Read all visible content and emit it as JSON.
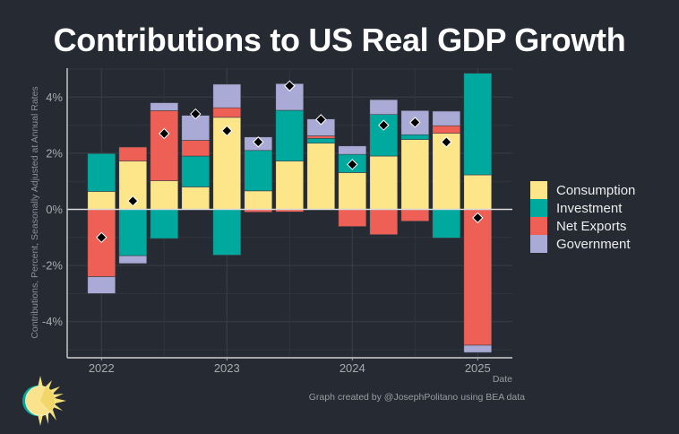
{
  "title": "Contributions to US Real GDP Growth",
  "caption": "Graph created by @JosephPolitano using BEA data",
  "chart_data": {
    "type": "bar",
    "stacked": true,
    "title": "Contributions to US Real GDP Growth",
    "xlabel": "Date",
    "ylabel": "Contributions, Percent, Seasonally Adjusted at Annual Rates",
    "categories": [
      "2022Q1",
      "2022Q2",
      "2022Q3",
      "2022Q4",
      "2023Q1",
      "2023Q2",
      "2023Q3",
      "2023Q4",
      "2024Q1",
      "2024Q2",
      "2024Q3",
      "2024Q4",
      "2025Q1"
    ],
    "x_tick_labels": [
      "2022",
      "2023",
      "2024",
      "2025"
    ],
    "x_tick_categories": [
      "2022Q1",
      "2023Q1",
      "2024Q1",
      "2025Q1"
    ],
    "y_ticks": [
      -4,
      -2,
      0,
      2,
      4
    ],
    "y_tick_labels": [
      "-4%",
      "-2%",
      "0%",
      "2%",
      "4%"
    ],
    "ylim": [
      -5.3,
      5.0
    ],
    "grid": true,
    "legend_position": "right",
    "series": [
      {
        "name": "Consumption",
        "color": "#fde68a",
        "values": [
          0.64,
          1.72,
          1.02,
          0.8,
          3.28,
          0.66,
          1.72,
          2.36,
          1.31,
          1.9,
          2.49,
          2.71,
          1.23
        ]
      },
      {
        "name": "Investment",
        "color": "#00a99d",
        "values": [
          1.35,
          -1.65,
          -1.04,
          1.1,
          -1.63,
          1.44,
          1.81,
          0.17,
          0.65,
          1.48,
          0.17,
          -1.02,
          3.62
        ]
      },
      {
        "name": "Net Exports",
        "color": "#ee6055",
        "values": [
          -2.4,
          0.5,
          2.5,
          0.56,
          0.34,
          -0.1,
          -0.09,
          0.09,
          -0.61,
          -0.9,
          -0.42,
          0.27,
          -4.84
        ]
      },
      {
        "name": "Government",
        "color": "#aaaad6",
        "values": [
          -0.6,
          -0.28,
          0.28,
          0.89,
          0.84,
          0.48,
          0.95,
          0.6,
          0.3,
          0.53,
          0.86,
          0.52,
          -0.26
        ]
      }
    ],
    "total_growth": [
      -1.0,
      0.3,
      2.7,
      3.4,
      2.8,
      2.4,
      4.4,
      3.2,
      1.6,
      3.0,
      3.1,
      2.4,
      -0.3
    ],
    "total_growth_marker": "diamond"
  }
}
